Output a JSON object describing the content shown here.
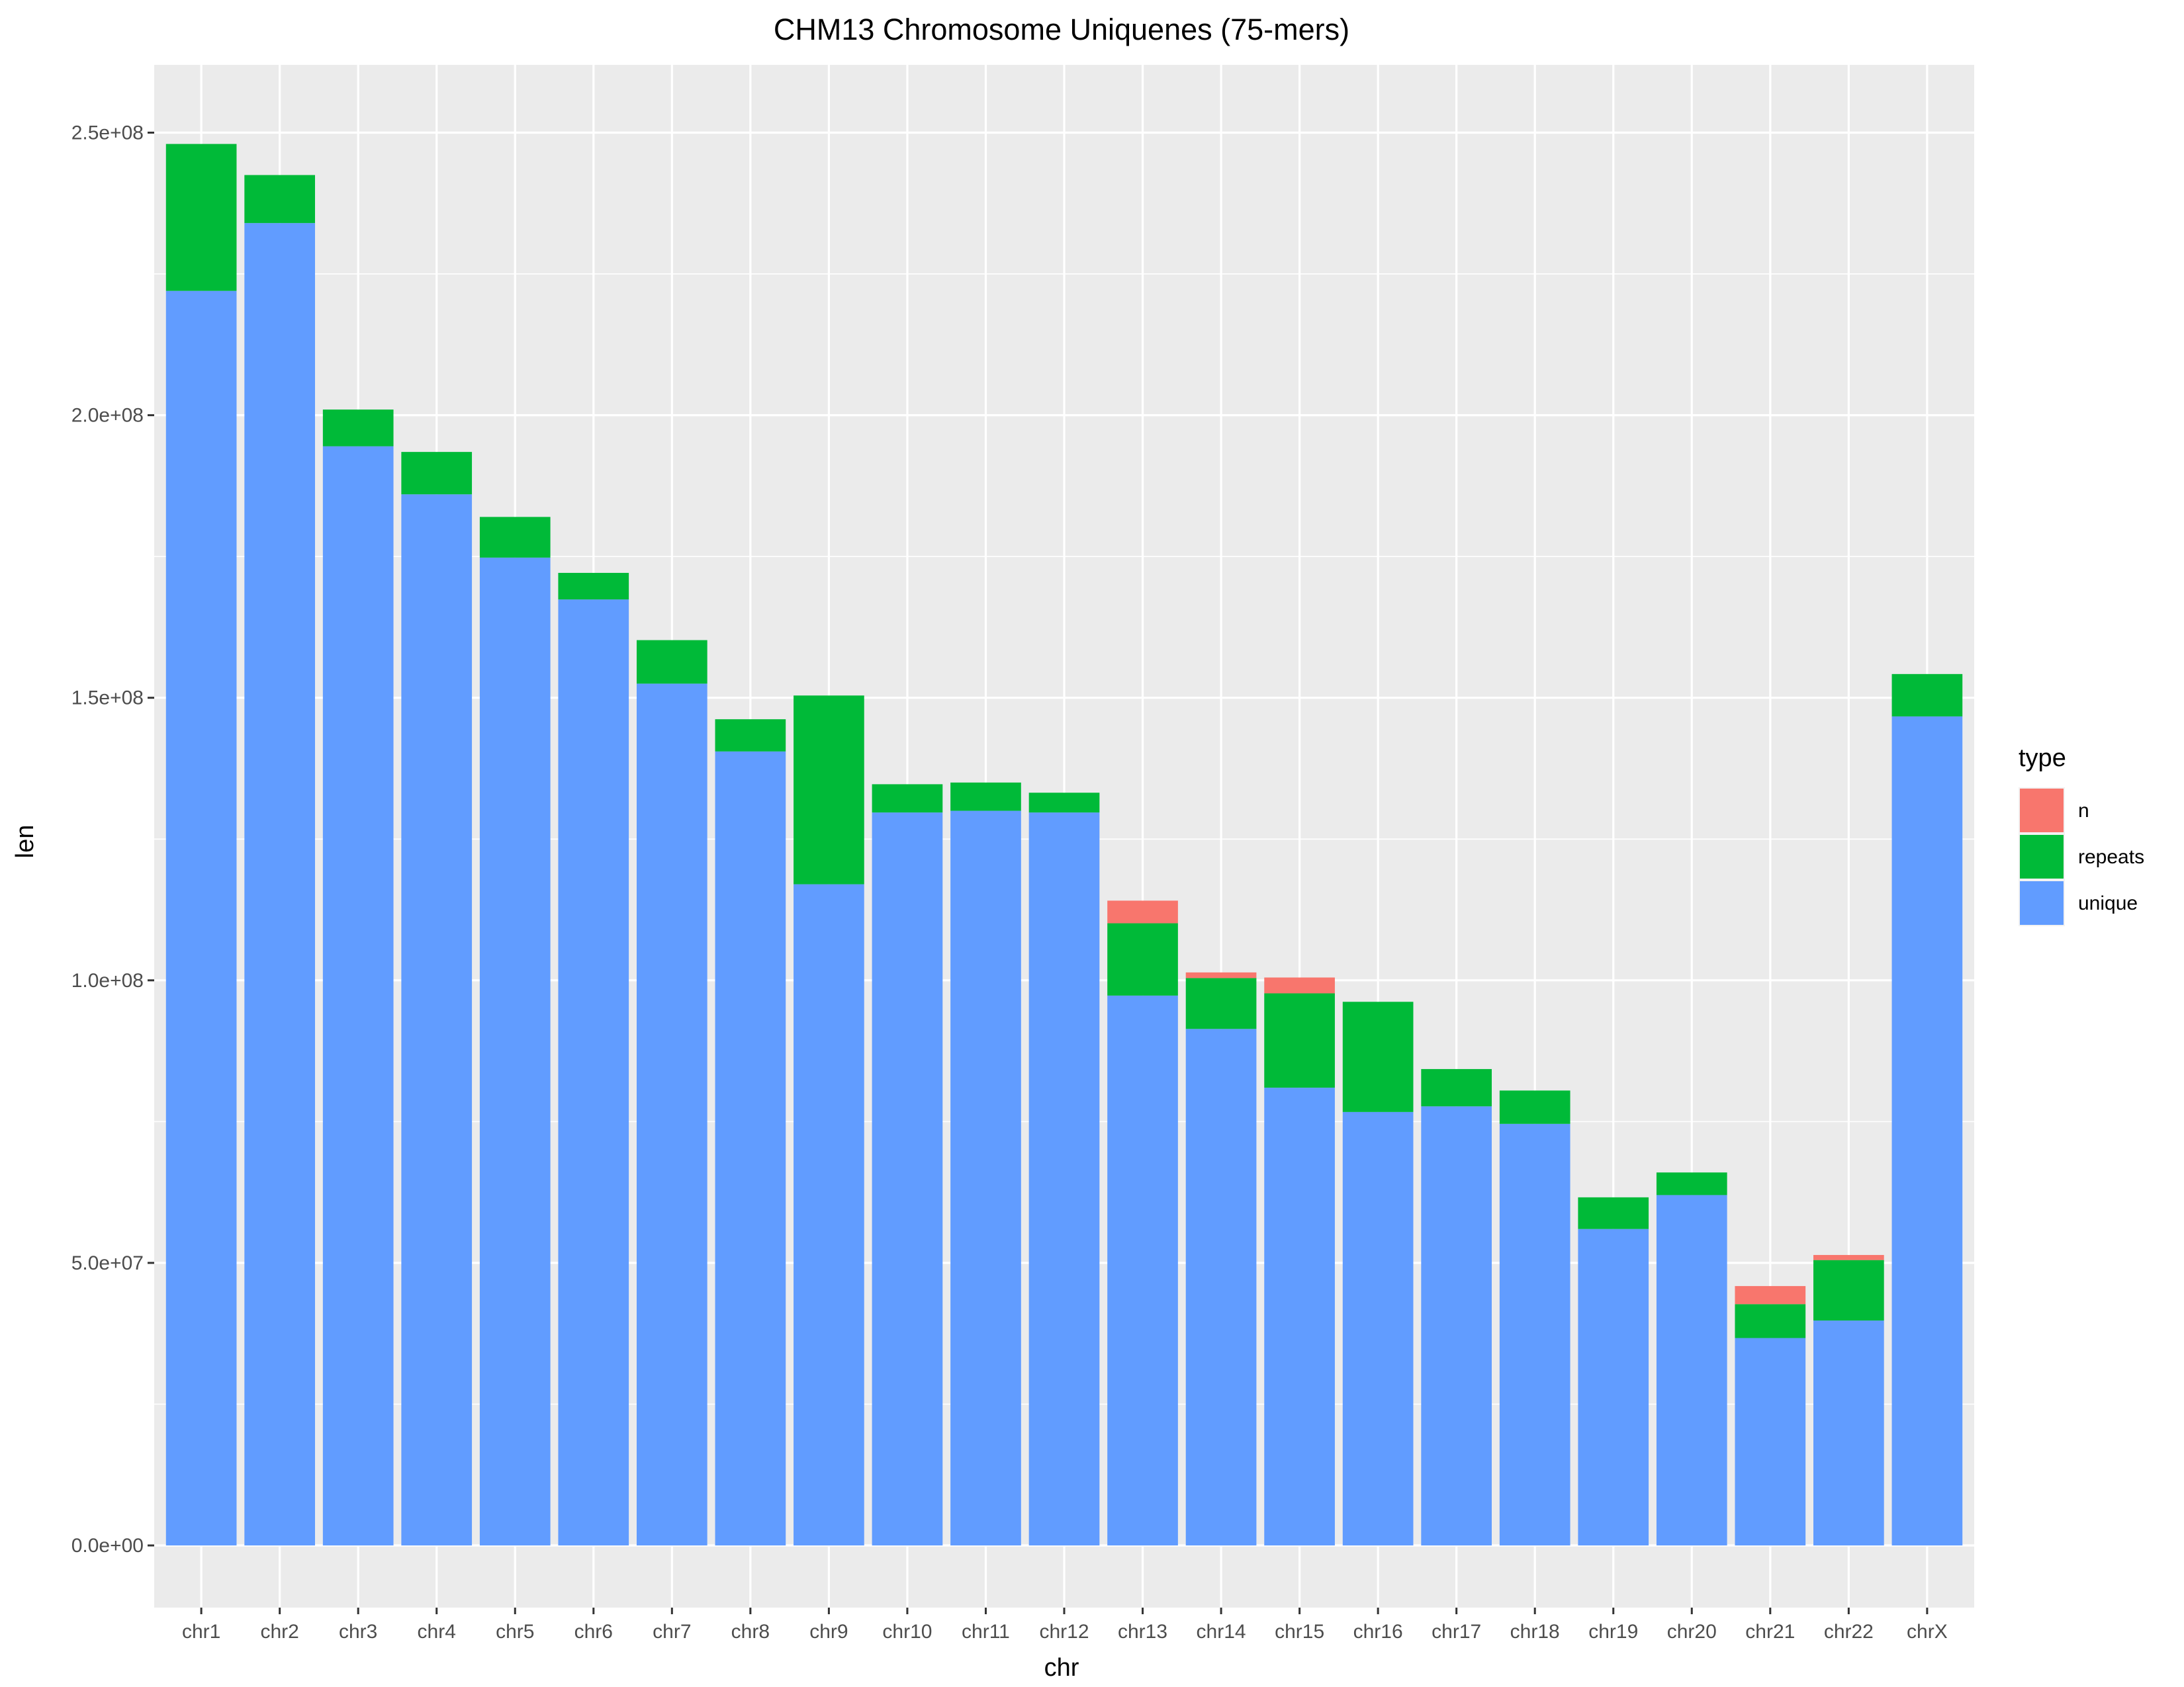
{
  "chart_data": {
    "type": "bar",
    "stacked": true,
    "title": "CHM13 Chromosome Uniquenes (75-mers)",
    "xlabel": "chr",
    "ylabel": "len",
    "ylim": [
      -11000000,
      262000000
    ],
    "y_ticks": [
      0,
      50000000,
      100000000,
      150000000,
      200000000,
      250000000
    ],
    "y_tick_labels": [
      "0.0e+00",
      "5.0e+07",
      "1.0e+08",
      "1.5e+08",
      "2.0e+08",
      "2.5e+08"
    ],
    "categories": [
      "chr1",
      "chr2",
      "chr3",
      "chr4",
      "chr5",
      "chr6",
      "chr7",
      "chr8",
      "chr9",
      "chr10",
      "chr11",
      "chr12",
      "chr13",
      "chr14",
      "chr15",
      "chr16",
      "chr17",
      "chr18",
      "chr19",
      "chr20",
      "chr21",
      "chr22",
      "chrX"
    ],
    "series": [
      {
        "name": "unique",
        "color": "#619CFF",
        "values": [
          222000000,
          234000000,
          194500000,
          186000000,
          174800000,
          167400000,
          152500000,
          140500000,
          117000000,
          129700000,
          130000000,
          129700000,
          97300000,
          91400000,
          81000000,
          76700000,
          77700000,
          74600000,
          56000000,
          62000000,
          36700000,
          39800000,
          146700000
        ]
      },
      {
        "name": "repeats",
        "color": "#00BA38",
        "values": [
          26000000,
          8500000,
          6500000,
          7500000,
          7200000,
          4700000,
          7700000,
          5700000,
          33400000,
          5000000,
          5000000,
          3500000,
          12800000,
          9000000,
          16700000,
          19500000,
          6600000,
          5900000,
          5600000,
          4000000,
          6000000,
          10700000,
          7500000
        ]
      },
      {
        "name": "n",
        "color": "#F8766D",
        "values": [
          0,
          0,
          0,
          0,
          0,
          0,
          0,
          0,
          0,
          0,
          0,
          0,
          4000000,
          1000000,
          2800000,
          0,
          0,
          0,
          0,
          0,
          3200000,
          900000,
          0
        ]
      }
    ],
    "legend": {
      "title": "type",
      "position": "right",
      "entries": [
        {
          "label": "n",
          "color": "#F8766D"
        },
        {
          "label": "repeats",
          "color": "#00BA38"
        },
        {
          "label": "unique",
          "color": "#619CFF"
        }
      ]
    },
    "panel_background": "#EBEBEB",
    "grid": true
  }
}
